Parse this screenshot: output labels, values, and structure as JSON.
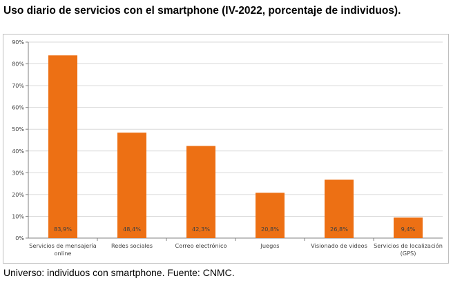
{
  "title": "Uso diario de servicios con el smartphone (IV-2022, porcentaje de individuos).",
  "footer": "Universo: individuos con smartphone. Fuente: CNMC.",
  "chart_data": {
    "type": "bar",
    "categories": [
      [
        "Servicios de mensajería",
        "online"
      ],
      [
        "Redes sociales"
      ],
      [
        "Correo electrónico"
      ],
      [
        "Juegos"
      ],
      [
        "Visionado de videos"
      ],
      [
        "Servicios de localización",
        "(GPS)"
      ]
    ],
    "values": [
      83.9,
      48.4,
      42.3,
      20.8,
      26.8,
      9.4
    ],
    "data_labels": [
      "83,9%",
      "48,4%",
      "42,3%",
      "20,8%",
      "26,8%",
      "9,4%"
    ],
    "y_ticks": [
      "0%",
      "10%",
      "20%",
      "30%",
      "40%",
      "50%",
      "60%",
      "70%",
      "80%",
      "90%"
    ],
    "ylim": [
      0,
      90
    ],
    "bar_color": "#ed7014",
    "grid": true
  }
}
